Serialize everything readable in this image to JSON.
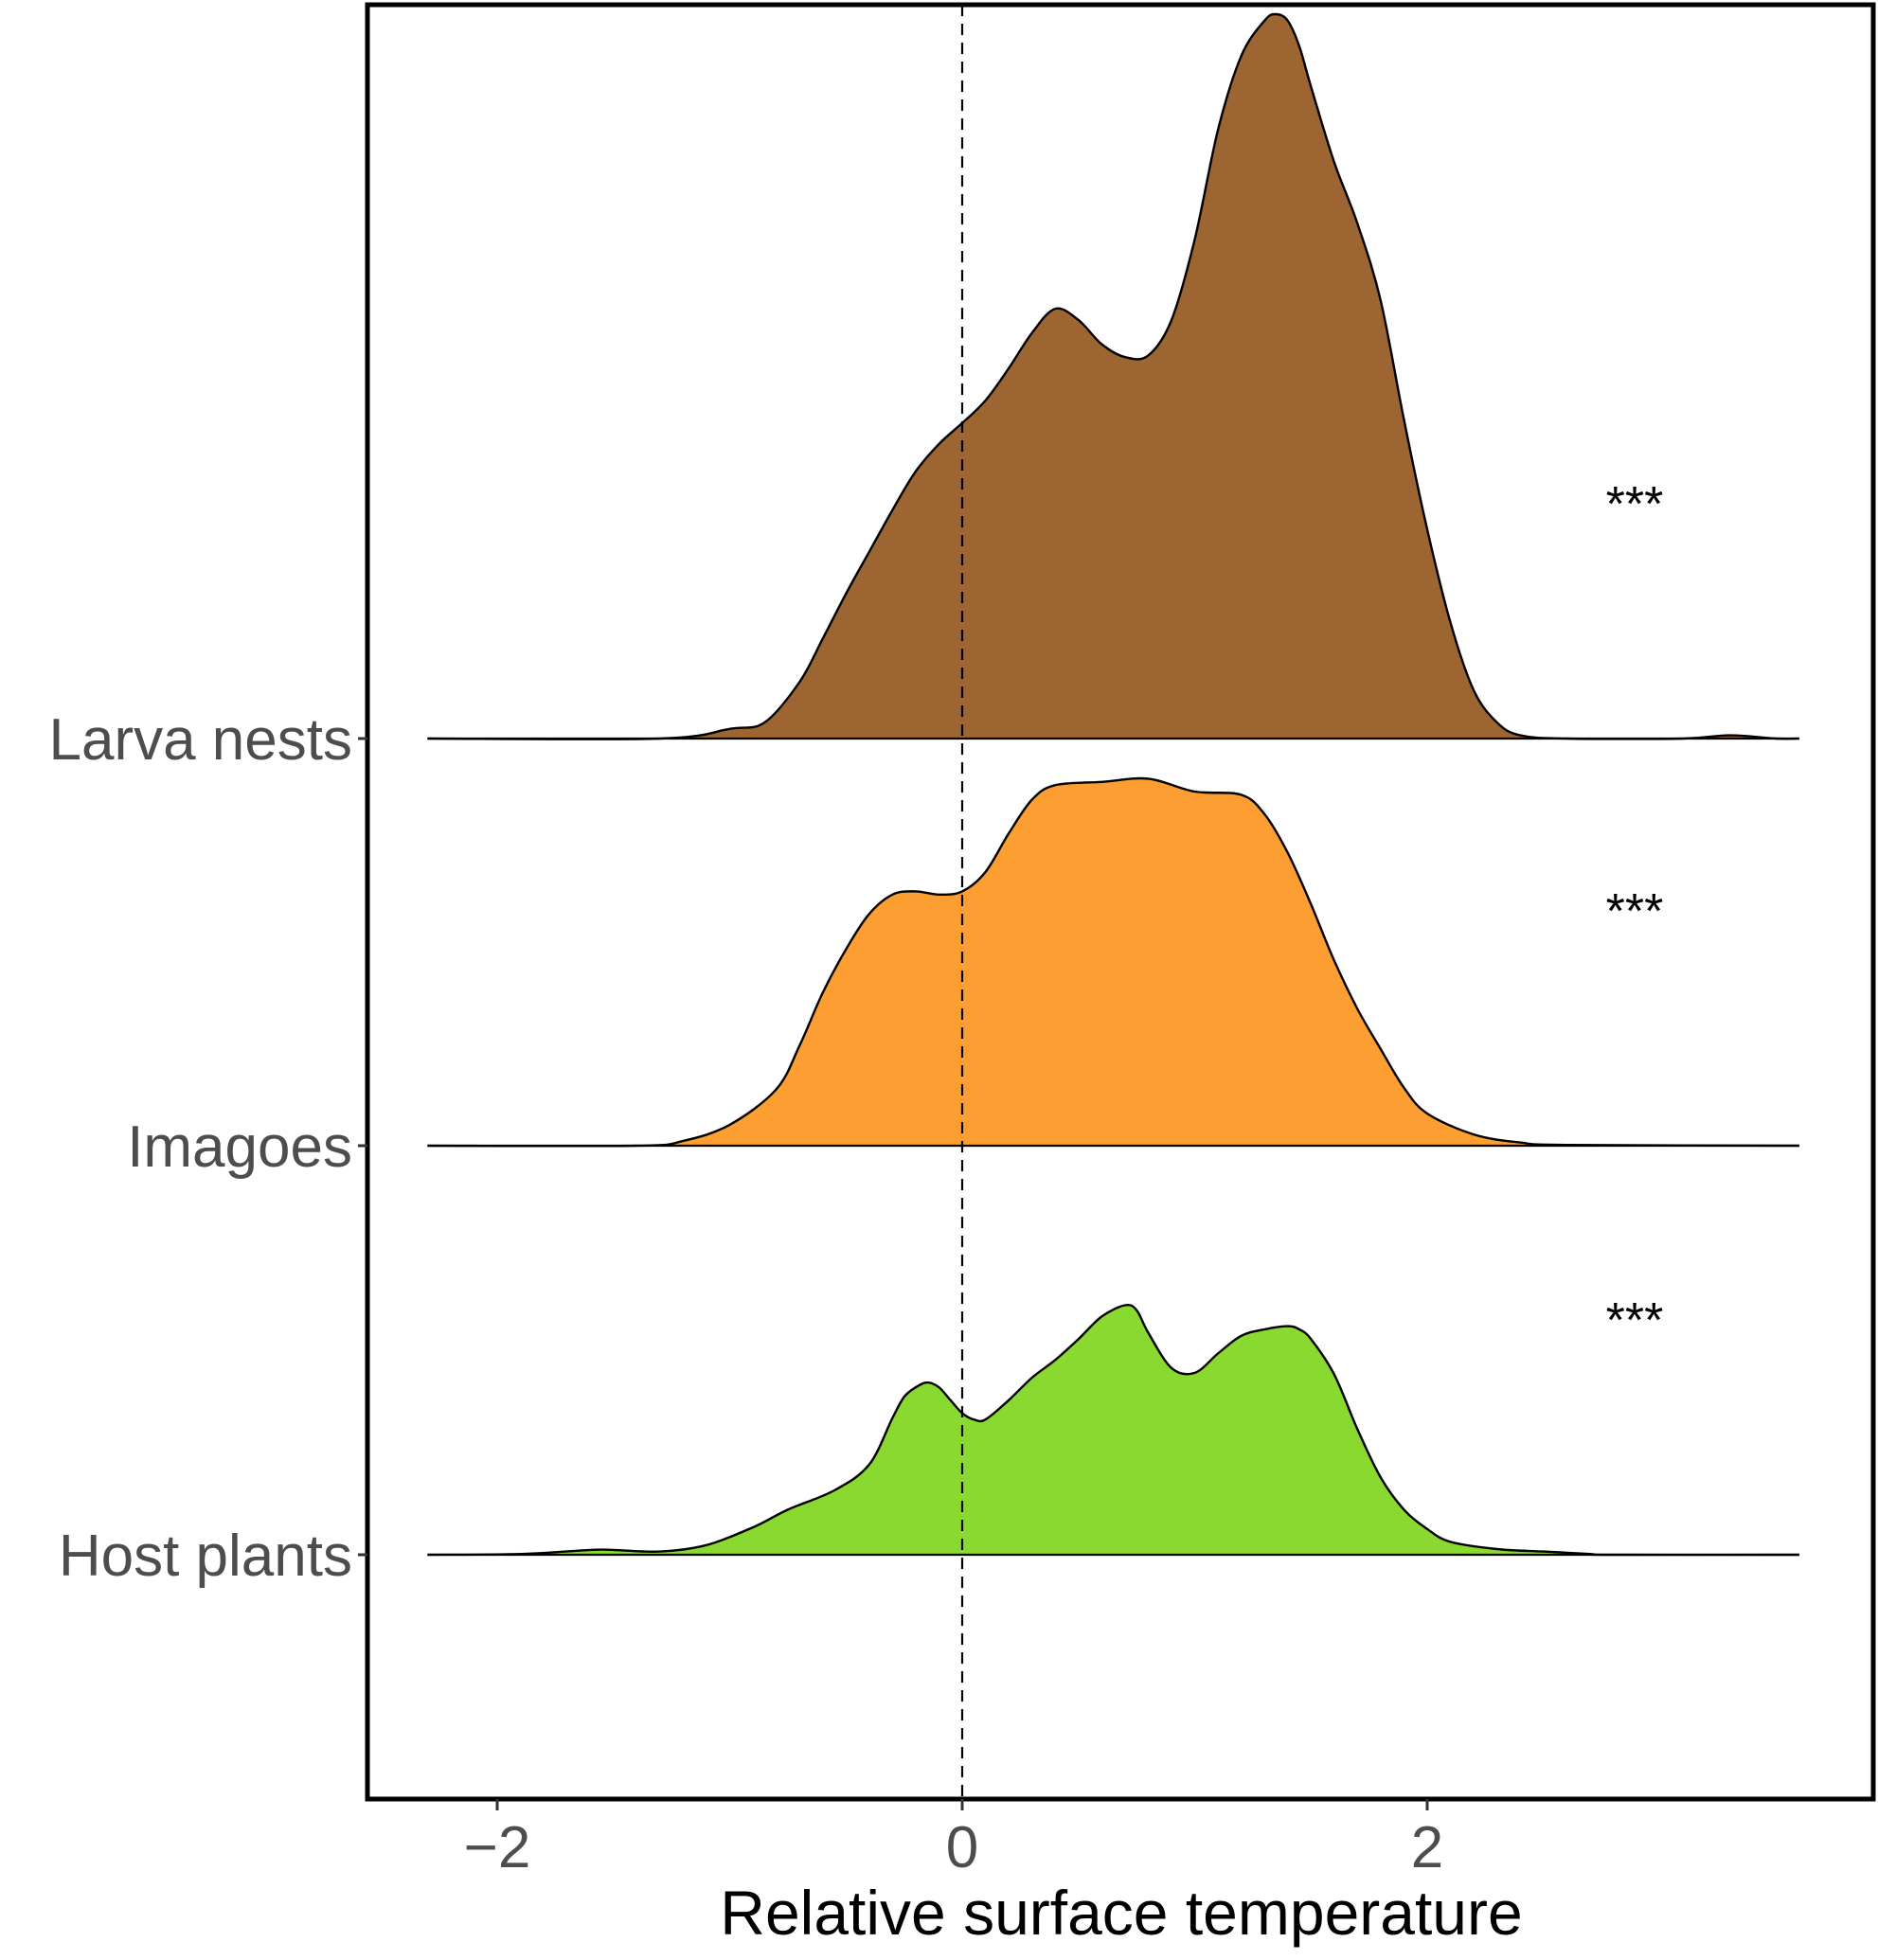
{
  "chart_data": {
    "type": "ridgeline",
    "title": "",
    "xlabel": "Relative surface temperature",
    "ylabel": "",
    "xlim": [
      -2.55,
      3.95
    ],
    "x_ticks": [
      -2,
      0,
      2
    ],
    "x_tick_labels": [
      "−2",
      "0",
      "2"
    ],
    "reference_line": {
      "x": 0,
      "style": "dashed"
    },
    "grid": false,
    "legend": "none",
    "panel_border": true,
    "series": [
      {
        "name": "Host plants",
        "color": "#7fd620",
        "opacity": 0.92,
        "significance": "***",
        "x": [
          -2.3,
          -1.9,
          -1.6,
          -1.5,
          -1.3,
          -1.1,
          -0.9,
          -0.75,
          -0.55,
          -0.4,
          -0.3,
          -0.25,
          -0.2,
          -0.15,
          -0.1,
          -0.05,
          0.0,
          0.05,
          0.1,
          0.2,
          0.3,
          0.4,
          0.5,
          0.6,
          0.7,
          0.75,
          0.8,
          0.9,
          1.0,
          1.1,
          1.2,
          1.3,
          1.4,
          1.45,
          1.5,
          1.6,
          1.7,
          1.8,
          1.9,
          2.0,
          2.1,
          2.3,
          2.5,
          2.7,
          2.8,
          3.6
        ],
        "density": [
          0.0,
          0.005,
          0.03,
          0.03,
          0.02,
          0.06,
          0.17,
          0.28,
          0.4,
          0.56,
          0.85,
          0.98,
          1.04,
          1.07,
          1.04,
          0.96,
          0.88,
          0.84,
          0.84,
          0.96,
          1.1,
          1.21,
          1.34,
          1.48,
          1.55,
          1.52,
          1.38,
          1.16,
          1.13,
          1.25,
          1.36,
          1.4,
          1.42,
          1.4,
          1.34,
          1.12,
          0.78,
          0.48,
          0.28,
          0.16,
          0.08,
          0.035,
          0.02,
          0.005,
          0.0,
          0.0
        ]
      },
      {
        "name": "Imagoes",
        "color": "#fc9620",
        "opacity": 0.92,
        "significance": "***",
        "x": [
          -2.3,
          -1.4,
          -1.2,
          -1.0,
          -0.8,
          -0.7,
          -0.6,
          -0.5,
          -0.4,
          -0.3,
          -0.2,
          -0.1,
          0.0,
          0.1,
          0.2,
          0.3,
          0.4,
          0.6,
          0.8,
          1.0,
          1.2,
          1.3,
          1.4,
          1.5,
          1.6,
          1.7,
          1.8,
          1.9,
          2.0,
          2.2,
          2.4,
          2.6,
          3.6
        ],
        "density": [
          0.0,
          0.0,
          0.03,
          0.13,
          0.35,
          0.62,
          0.95,
          1.22,
          1.44,
          1.56,
          1.58,
          1.56,
          1.58,
          1.7,
          1.94,
          2.15,
          2.24,
          2.26,
          2.28,
          2.2,
          2.18,
          2.06,
          1.82,
          1.5,
          1.15,
          0.85,
          0.6,
          0.36,
          0.2,
          0.07,
          0.02,
          0.005,
          0.0
        ]
      },
      {
        "name": "Larva nests",
        "color": "#94581f",
        "opacity": 0.92,
        "significance": "***",
        "x": [
          -2.3,
          -1.3,
          -1.0,
          -0.85,
          -0.7,
          -0.6,
          -0.5,
          -0.4,
          -0.3,
          -0.2,
          -0.1,
          0.0,
          0.1,
          0.2,
          0.3,
          0.4,
          0.5,
          0.6,
          0.7,
          0.8,
          0.9,
          1.0,
          1.1,
          1.2,
          1.3,
          1.35,
          1.4,
          1.45,
          1.5,
          1.6,
          1.7,
          1.8,
          1.9,
          2.0,
          2.1,
          2.2,
          2.3,
          2.4,
          2.6,
          3.1,
          3.3,
          3.5,
          3.6
        ],
        "density": [
          0.0,
          0.0,
          0.06,
          0.1,
          0.35,
          0.62,
          0.9,
          1.16,
          1.42,
          1.66,
          1.83,
          1.96,
          2.1,
          2.3,
          2.52,
          2.67,
          2.6,
          2.45,
          2.37,
          2.38,
          2.6,
          3.1,
          3.78,
          4.24,
          4.46,
          4.5,
          4.46,
          4.3,
          4.05,
          3.58,
          3.2,
          2.72,
          1.98,
          1.3,
          0.72,
          0.3,
          0.1,
          0.02,
          0.0,
          0.0,
          0.02,
          0.0,
          0.0
        ]
      }
    ]
  }
}
